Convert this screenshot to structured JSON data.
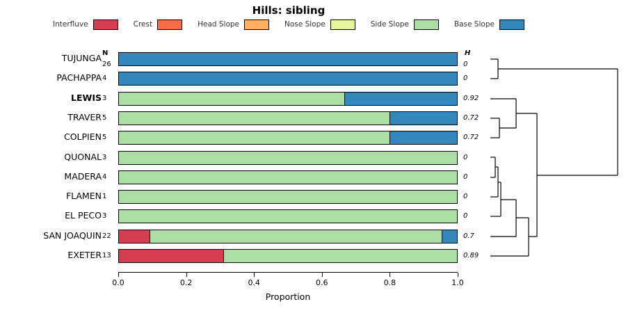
{
  "title": "Hills: sibling",
  "headers": {
    "n": "N",
    "h": "H"
  },
  "xlabel": "Proportion",
  "legend": {
    "items": [
      {
        "label": "Interfluve",
        "color": "#d53e4f"
      },
      {
        "label": "Crest",
        "color": "#f46d43"
      },
      {
        "label": "Head Slope",
        "color": "#fdae61"
      },
      {
        "label": "Nose Slope",
        "color": "#e6f598"
      },
      {
        "label": "Side Slope",
        "color": "#abdda4"
      },
      {
        "label": "Base Slope",
        "color": "#3288bd"
      }
    ]
  },
  "chart_data": {
    "type": "bar",
    "orientation": "horizontal",
    "stacked": true,
    "title": "Hills: sibling",
    "xlabel": "Proportion",
    "xlim": [
      0,
      1
    ],
    "x_ticks": [
      0,
      0.2,
      0.4,
      0.6,
      0.8,
      1.0
    ],
    "grid": false,
    "legend_position": "top",
    "categories": [
      "TUJUNGA",
      "PACHAPPA",
      "LEWIS",
      "TRAVER",
      "COLPIEN",
      "QUONAL",
      "MADERA",
      "FLAMEN",
      "EL PECO",
      "SAN JOAQUIN",
      "EXETER"
    ],
    "bold_category": "LEWIS",
    "series": [
      {
        "name": "Interfluve",
        "values": [
          0,
          0,
          0,
          0,
          0,
          0,
          0,
          0,
          0,
          0.091,
          0.308
        ]
      },
      {
        "name": "Crest",
        "values": [
          0,
          0,
          0,
          0,
          0,
          0,
          0,
          0,
          0,
          0,
          0
        ]
      },
      {
        "name": "Head Slope",
        "values": [
          0,
          0,
          0,
          0,
          0,
          0,
          0,
          0,
          0,
          0,
          0
        ]
      },
      {
        "name": "Nose Slope",
        "values": [
          0,
          0,
          0,
          0,
          0,
          0,
          0,
          0,
          0,
          0,
          0
        ]
      },
      {
        "name": "Side Slope",
        "values": [
          0,
          0,
          0.667,
          0.8,
          0.8,
          1,
          1,
          1,
          1,
          0.864,
          0.692
        ]
      },
      {
        "name": "Base Slope",
        "values": [
          1,
          1,
          0.333,
          0.2,
          0.2,
          0,
          0,
          0,
          0,
          0.045,
          0
        ]
      }
    ],
    "n_values": [
      26,
      4,
      3,
      5,
      5,
      3,
      4,
      1,
      3,
      22,
      13
    ],
    "h_values": [
      "0",
      "0",
      "0.92",
      "0.72",
      "0.72",
      "0",
      "0",
      "0",
      "0",
      "0.7",
      "0.89"
    ]
  },
  "dendrogram": {
    "segments": [
      [
        705,
        85,
        716,
        85
      ],
      [
        705,
        113,
        716,
        113
      ],
      [
        716,
        85,
        716,
        113
      ],
      [
        716,
        99,
        888,
        99
      ],
      [
        705,
        170,
        718,
        170
      ],
      [
        705,
        198,
        718,
        198
      ],
      [
        718,
        170,
        718,
        198
      ],
      [
        705,
        142,
        742,
        142
      ],
      [
        718,
        184,
        742,
        184
      ],
      [
        742,
        142,
        742,
        184
      ],
      [
        742,
        163,
        772,
        163
      ],
      [
        705,
        226,
        712,
        226
      ],
      [
        705,
        255,
        712,
        255
      ],
      [
        712,
        226,
        712,
        255
      ],
      [
        712,
        240,
        716,
        240
      ],
      [
        705,
        283,
        716,
        283
      ],
      [
        716,
        240,
        716,
        283
      ],
      [
        716,
        262,
        720,
        262
      ],
      [
        705,
        311,
        720,
        311
      ],
      [
        720,
        262,
        720,
        311
      ],
      [
        720,
        287,
        742,
        287
      ],
      [
        705,
        340,
        742,
        340
      ],
      [
        742,
        287,
        742,
        340
      ],
      [
        742,
        313,
        760,
        313
      ],
      [
        705,
        368,
        760,
        368
      ],
      [
        760,
        313,
        760,
        368
      ],
      [
        760,
        340,
        772,
        340
      ],
      [
        772,
        163,
        772,
        340
      ],
      [
        772,
        252,
        888,
        252
      ],
      [
        888,
        99,
        888,
        252
      ]
    ]
  }
}
